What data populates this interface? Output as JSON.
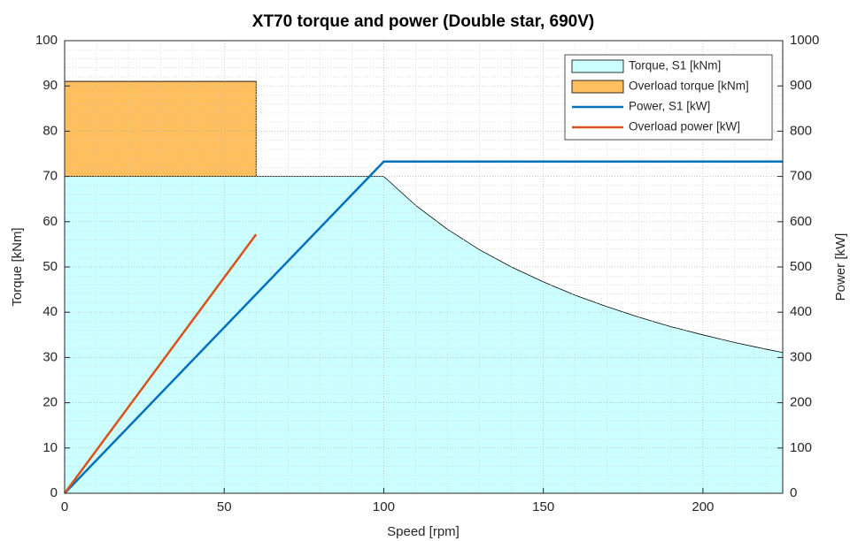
{
  "chart_data": {
    "type": "area-line",
    "title": "XT70 torque and power (Double star, 690V)",
    "x_label": "Speed [rpm]",
    "y_label": "Torque [kNm]",
    "y2_label": "Power [kW]",
    "xlim": [
      0,
      225
    ],
    "xticks": [
      0,
      50,
      100,
      150,
      200
    ],
    "ylim": [
      0,
      100
    ],
    "yticks": [
      0,
      10,
      20,
      30,
      40,
      50,
      60,
      70,
      80,
      90,
      100
    ],
    "y2lim": [
      0,
      1000
    ],
    "y2ticks": [
      0,
      100,
      200,
      300,
      400,
      500,
      600,
      700,
      800,
      900,
      1000
    ],
    "grid": true,
    "minor_grid": true,
    "legend": "upper right",
    "series": [
      {
        "name": "Torque, S1 [kNm]",
        "kind": "area",
        "color": "#ccffff",
        "x": [
          0,
          100,
          110,
          120,
          130,
          140,
          150,
          160,
          170,
          180,
          190,
          200,
          210,
          220,
          225
        ],
        "values": [
          70,
          70,
          63.6,
          58.3,
          53.8,
          50,
          46.7,
          43.75,
          41.2,
          38.9,
          36.8,
          35,
          33.3,
          31.8,
          31.1
        ]
      },
      {
        "name": "Overload torque [kNm]",
        "kind": "area",
        "color": "#ffbf5e",
        "x": [
          0,
          60
        ],
        "values": [
          91,
          91
        ]
      },
      {
        "name": "Power, S1 [kW]",
        "kind": "line",
        "color": "#0072bd",
        "axis": "y2",
        "x": [
          0,
          100,
          225
        ],
        "values": [
          0,
          733,
          733
        ]
      },
      {
        "name": "Overload power [kW]",
        "kind": "line",
        "color": "#d95319",
        "axis": "y2",
        "x": [
          0,
          60
        ],
        "values": [
          0,
          572
        ]
      }
    ]
  }
}
